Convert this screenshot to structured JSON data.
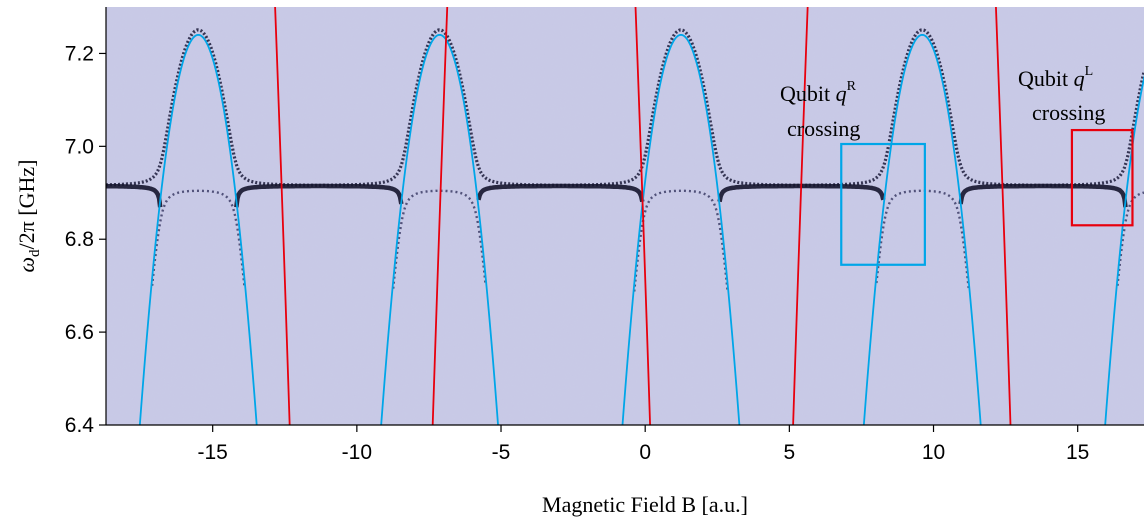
{
  "chart_data": {
    "type": "line",
    "title": "",
    "xlabel": "Magnetic Field B [a.u.]",
    "ylabel_symbol": "ω",
    "ylabel_sub": "d",
    "ylabel_rest": "/2π [GHz]",
    "xlim": [
      -18.7,
      17.3
    ],
    "ylim": [
      6.4,
      7.3
    ],
    "x_ticks": [
      -15,
      -10,
      -5,
      0,
      5,
      10,
      15
    ],
    "x_tick_labels": [
      "-15",
      "-10",
      "-5",
      "0",
      "5",
      "10",
      "15"
    ],
    "y_ticks": [
      6.4,
      6.6,
      6.8,
      7.0,
      7.2
    ],
    "y_tick_labels": [
      "6.4",
      "6.6",
      "6.8",
      "7.0",
      "7.2"
    ],
    "grid": false,
    "background": "spectroscopy map (resonator transmission vs magnetic field)",
    "cavity_frequency": 6.915,
    "series": [
      {
        "color": "#00a6e8",
        "period": 8.37,
        "centers": [
          -15.5,
          -7.13,
          1.24,
          9.61,
          17.98
        ],
        "peak": 7.24,
        "curvature": 0.2045
      },
      {
        "color": "#e8000d",
        "period": 12.5,
        "centers": [
          -16.1,
          -3.6,
          8.9,
          21.4
        ],
        "peak": 10.0,
        "curvature": 0.2533
      }
    ],
    "annotations": [
      {
        "line1": "Qubit ",
        "symbol": "q",
        "sup": "R",
        "line2": "crossing",
        "color": "#00a6e8",
        "box_x": [
          6.8,
          9.7
        ],
        "box_y": [
          6.745,
          7.005
        ]
      },
      {
        "line1": "Qubit ",
        "symbol": "q",
        "sup": "L",
        "line2": "crossing",
        "color": "#e8000d",
        "box_x": [
          14.8,
          16.9
        ],
        "box_y": [
          6.83,
          7.035
        ]
      }
    ]
  }
}
